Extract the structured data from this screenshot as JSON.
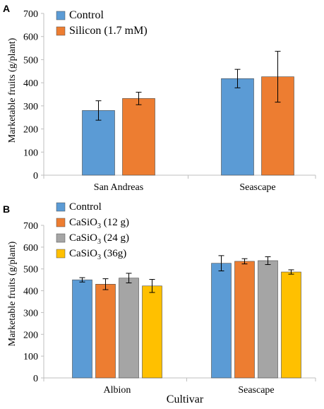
{
  "panels": [
    {
      "letter": "A",
      "xlabel": "",
      "ylabel": "Marketable fruits (g/plant)"
    },
    {
      "letter": "B",
      "xlabel": "Cultivar",
      "ylabel": "Marketable fruits (g/plant)"
    }
  ],
  "chart_data": [
    {
      "type": "bar",
      "panel": "A",
      "title": "",
      "ylabel": "Marketable fruits (g/plant)",
      "xlabel": "",
      "ylim": [
        0,
        700
      ],
      "yticks": [
        0,
        100,
        200,
        300,
        400,
        500,
        600,
        700
      ],
      "categories": [
        "San Andreas",
        "Seascape"
      ],
      "legend_position": "top-left",
      "series": [
        {
          "name": "Control",
          "color": "#5b9bd5",
          "values": [
            280,
            418
          ],
          "errors": [
            42,
            40
          ]
        },
        {
          "name": "Silicon (1.7 mM)",
          "color": "#ed7d31",
          "values": [
            332,
            426
          ],
          "errors": [
            27,
            110
          ]
        }
      ]
    },
    {
      "type": "bar",
      "panel": "B",
      "title": "",
      "ylabel": "Marketable fruits (g/plant)",
      "xlabel": "Cultivar",
      "ylim": [
        0,
        700
      ],
      "yticks": [
        0,
        100,
        200,
        300,
        400,
        500,
        600,
        700
      ],
      "categories": [
        "Albion",
        "Seascape"
      ],
      "legend_position": "top-left",
      "series": [
        {
          "name": "Control",
          "label_main": "Control",
          "label_sub": "",
          "label_tail": "",
          "color": "#5b9bd5",
          "values": [
            450,
            526
          ],
          "errors": [
            10,
            35
          ]
        },
        {
          "name": "CaSiO3 (12 g)",
          "label_main": "CaSiO",
          "label_sub": "3",
          "label_tail": " (12 g)",
          "color": "#ed7d31",
          "values": [
            430,
            535
          ],
          "errors": [
            25,
            12
          ]
        },
        {
          "name": "CaSiO3 (24 g)",
          "label_main": "CaSiO",
          "label_sub": "3",
          "label_tail": " (24 g)",
          "color": "#a5a5a5",
          "values": [
            458,
            538
          ],
          "errors": [
            22,
            18
          ]
        },
        {
          "name": "CaSiO3 (36g)",
          "label_main": "CaSiO",
          "label_sub": "3",
          "label_tail": " (36g)",
          "color": "#ffc000",
          "values": [
            422,
            486
          ],
          "errors": [
            30,
            10
          ]
        }
      ]
    }
  ]
}
